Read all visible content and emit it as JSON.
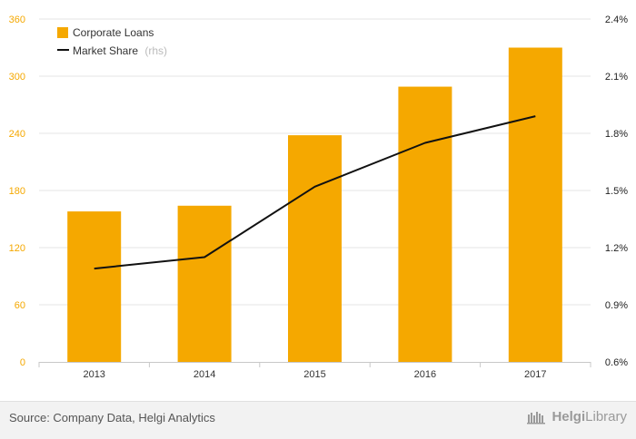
{
  "chart_data": {
    "type": "bar",
    "categories": [
      "2013",
      "2014",
      "2015",
      "2016",
      "2017"
    ],
    "series": [
      {
        "name": "Corporate Loans",
        "type": "bar",
        "axis": "left",
        "color": "#f5a800",
        "values": [
          158,
          164,
          238,
          289,
          330
        ]
      },
      {
        "name": "Market Share",
        "name_suffix": "(rhs)",
        "type": "line",
        "axis": "right",
        "color": "#111111",
        "values": [
          1.09,
          1.15,
          1.52,
          1.75,
          1.89
        ]
      }
    ],
    "y_left": {
      "ylim": [
        0,
        360
      ],
      "ticks": [
        0,
        60,
        120,
        180,
        240,
        300,
        360
      ],
      "tick_labels": [
        "0",
        "60",
        "120",
        "180",
        "240",
        "300",
        "360"
      ]
    },
    "y_right": {
      "ylim": [
        0.6,
        2.4
      ],
      "ticks": [
        0.6,
        0.9,
        1.2,
        1.5,
        1.8,
        2.1,
        2.4
      ],
      "tick_labels": [
        "0.6%",
        "0.9%",
        "1.2%",
        "1.5%",
        "1.8%",
        "2.1%",
        "2.4%"
      ]
    },
    "grid": true,
    "legend": "top-left"
  },
  "footer": {
    "source": "Source: Company Data, Helgi Analytics",
    "brand_part1": "Helgi",
    "brand_part2": "Library"
  }
}
